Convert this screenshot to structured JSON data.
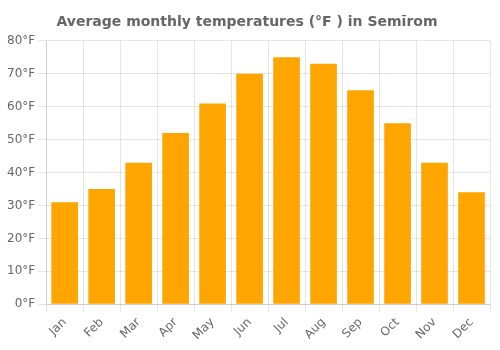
{
  "chart_data": {
    "type": "bar",
    "title": "Average monthly temperatures (°F ) in Semīrom",
    "categories": [
      "Jan",
      "Feb",
      "Mar",
      "Apr",
      "May",
      "Jun",
      "Jul",
      "Aug",
      "Sep",
      "Oct",
      "Nov",
      "Dec"
    ],
    "values": [
      31,
      35,
      43,
      52,
      61,
      70,
      75,
      73,
      65,
      55,
      43,
      34
    ],
    "color": "#FFA500",
    "ylim": [
      0,
      80
    ],
    "yticks": [
      {
        "value": 0,
        "label": "0°F"
      },
      {
        "value": 10,
        "label": "10°F"
      },
      {
        "value": 20,
        "label": "20°F"
      },
      {
        "value": 30,
        "label": "30°F"
      },
      {
        "value": 40,
        "label": "40°F"
      },
      {
        "value": 50,
        "label": "50°F"
      },
      {
        "value": 60,
        "label": "60°F"
      },
      {
        "value": 70,
        "label": "70°F"
      },
      {
        "value": 80,
        "label": "80°F"
      }
    ],
    "grid": true
  }
}
